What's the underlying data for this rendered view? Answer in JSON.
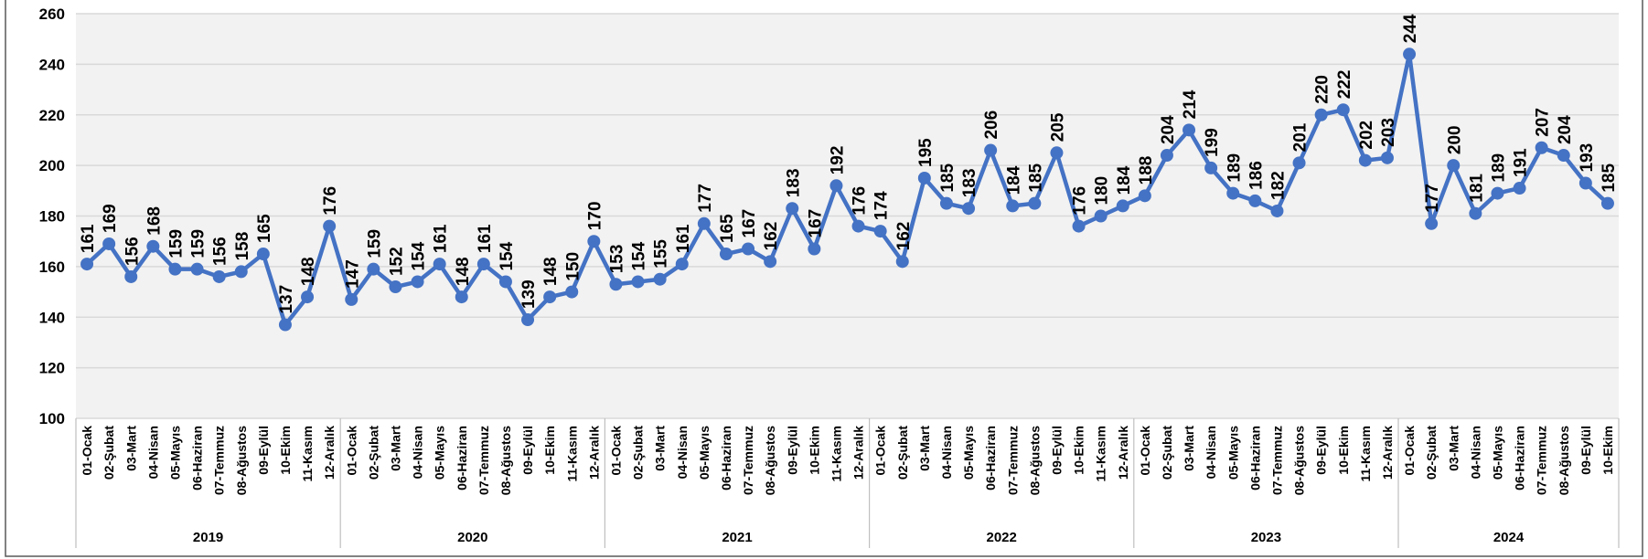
{
  "chart_data": {
    "type": "line",
    "categories": [
      "01-Ocak",
      "02-Şubat",
      "03-Mart",
      "04-Nisan",
      "05-Mayıs",
      "06-Haziran",
      "07-Temmuz",
      "08-Ağustos",
      "09-Eylül",
      "10-Ekim",
      "11-Kasım",
      "12-Aralık",
      "01-Ocak",
      "02-Şubat",
      "03-Mart",
      "04-Nisan",
      "05-Mayıs",
      "06-Haziran",
      "07-Temmuz",
      "08-Ağustos",
      "09-Eylül",
      "10-Ekim",
      "11-Kasım",
      "12-Aralık",
      "01-Ocak",
      "02-Şubat",
      "03-Mart",
      "04-Nisan",
      "05-Mayıs",
      "06-Haziran",
      "07-Temmuz",
      "08-Ağustos",
      "09-Eylül",
      "10-Ekim",
      "11-Kasım",
      "12-Aralık",
      "01-Ocak",
      "02-Şubat",
      "03-Mart",
      "04-Nisan",
      "05-Mayıs",
      "06-Haziran",
      "07-Temmuz",
      "08-Ağustos",
      "09-Eylül",
      "10-Ekim",
      "11-Kasım",
      "12-Aralık",
      "01-Ocak",
      "02-Şubat",
      "03-Mart",
      "04-Nisan",
      "05-Mayıs",
      "06-Haziran",
      "07-Temmuz",
      "08-Ağustos",
      "09-Eylül",
      "10-Ekim",
      "11-Kasım",
      "12-Aralık",
      "01-Ocak",
      "02-Şubat",
      "03-Mart",
      "04-Nisan",
      "05-Mayıs",
      "06-Haziran",
      "07-Temmuz",
      "08-Ağustos",
      "09-Eylül",
      "10-Ekim"
    ],
    "category_groups": [
      "2019",
      "2020",
      "2021",
      "2022",
      "2023",
      "2024"
    ],
    "values": [
      161,
      169,
      156,
      168,
      159,
      159,
      156,
      158,
      165,
      137,
      148,
      176,
      147,
      159,
      152,
      154,
      161,
      148,
      161,
      154,
      139,
      148,
      150,
      170,
      153,
      154,
      155,
      161,
      177,
      165,
      167,
      162,
      183,
      167,
      192,
      176,
      174,
      162,
      195,
      185,
      183,
      206,
      184,
      185,
      205,
      176,
      180,
      184,
      188,
      204,
      214,
      199,
      189,
      186,
      182,
      201,
      220,
      222,
      202,
      203,
      244,
      177,
      200,
      181,
      189,
      191,
      207,
      204,
      193,
      185
    ],
    "color": "#4472c4",
    "ylim": [
      100,
      260
    ],
    "yticks": [
      100,
      120,
      140,
      160,
      180,
      200,
      220,
      240,
      260
    ],
    "grid": true
  }
}
